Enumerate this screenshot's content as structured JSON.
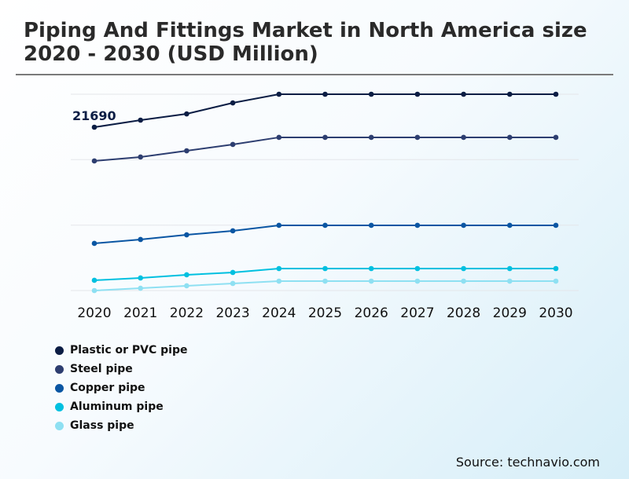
{
  "title": "Piping And Fittings Market in North America size 2020 - 2030 (USD Million)",
  "source": "Source: technavio.com",
  "chart_data": {
    "type": "line",
    "title": "Piping And Fittings Market in North America size 2020 - 2030 (USD Million)",
    "xlabel": "",
    "ylabel": "",
    "x": [
      "2020",
      "2021",
      "2022",
      "2023",
      "2024",
      "2025",
      "2026",
      "2027",
      "2028",
      "2029",
      "2030"
    ],
    "ylim": [
      0,
      26070
    ],
    "grid": true,
    "legend": "bottom-left",
    "annotations": [
      {
        "series": "Plastic or PVC pipe",
        "x": "2020",
        "text": "21690"
      }
    ],
    "series": [
      {
        "name": "Plastic or PVC pipe",
        "color": "#0b1d44",
        "values": [
          21690,
          22630,
          23460,
          24920,
          26070,
          26070,
          26070,
          26070,
          26070,
          26070,
          26070
        ]
      },
      {
        "name": "Steel pipe",
        "color": "#2d3e70",
        "values": [
          17210,
          17730,
          18560,
          19400,
          20340,
          20340,
          20340,
          20340,
          20340,
          20340,
          20340
        ]
      },
      {
        "name": "Copper pipe",
        "color": "#0a56a3",
        "values": [
          6260,
          6780,
          7400,
          7930,
          8660,
          8660,
          8660,
          8660,
          8660,
          8660,
          8660
        ]
      },
      {
        "name": "Aluminum pipe",
        "color": "#00c0e0",
        "values": [
          1360,
          1670,
          2090,
          2400,
          2920,
          2920,
          2920,
          2920,
          2920,
          2920,
          2920
        ]
      },
      {
        "name": "Glass pipe",
        "color": "#8ee0f2",
        "values": [
          0,
          310,
          630,
          940,
          1250,
          1250,
          1250,
          1250,
          1250,
          1250,
          1250
        ]
      }
    ]
  }
}
